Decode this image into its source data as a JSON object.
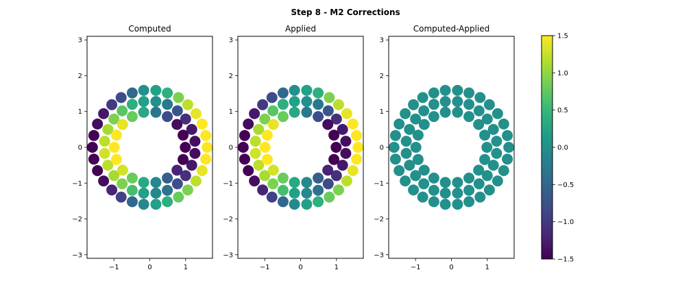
{
  "figure": {
    "suptitle": "Step 8 - M2 Corrections"
  },
  "chart_data": [
    {
      "type": "scatter",
      "title": "Computed",
      "xlim": [
        -1.75,
        1.75
      ],
      "ylim": [
        -3.1,
        3.1
      ],
      "xticks": [
        -1,
        0,
        1
      ],
      "yticks": [
        -3,
        -2,
        -1,
        0,
        1,
        2,
        3
      ],
      "colormap": "viridis",
      "clim": [
        -1.5,
        1.5
      ],
      "points": [
        {
          "x": -0.17,
          "y": 1.59,
          "v": 0.0
        },
        {
          "x": 0.17,
          "y": 1.59,
          "v": 0.2
        },
        {
          "x": 0.49,
          "y": 1.52,
          "v": 0.4
        },
        {
          "x": 0.8,
          "y": 1.39,
          "v": 0.9
        },
        {
          "x": 1.06,
          "y": 1.19,
          "v": 1.2
        },
        {
          "x": 1.29,
          "y": 0.94,
          "v": 1.4
        },
        {
          "x": 1.46,
          "y": 0.65,
          "v": 1.5
        },
        {
          "x": 1.56,
          "y": 0.33,
          "v": 1.5
        },
        {
          "x": 1.6,
          "y": 0.0,
          "v": 1.6
        },
        {
          "x": 1.56,
          "y": -0.33,
          "v": 1.5
        },
        {
          "x": 1.46,
          "y": -0.65,
          "v": 1.4
        },
        {
          "x": 1.29,
          "y": -0.94,
          "v": 1.2
        },
        {
          "x": 1.06,
          "y": -1.19,
          "v": 0.9
        },
        {
          "x": 0.8,
          "y": -1.39,
          "v": 0.8
        },
        {
          "x": 0.49,
          "y": -1.52,
          "v": 0.4
        },
        {
          "x": 0.17,
          "y": -1.59,
          "v": 0.2
        },
        {
          "x": -0.17,
          "y": -1.59,
          "v": -0.1
        },
        {
          "x": -0.49,
          "y": -1.52,
          "v": -0.5
        },
        {
          "x": -0.8,
          "y": -1.39,
          "v": -0.9
        },
        {
          "x": -1.06,
          "y": -1.19,
          "v": -1.2
        },
        {
          "x": -1.29,
          "y": -0.94,
          "v": -1.4
        },
        {
          "x": -1.46,
          "y": -0.65,
          "v": -1.5
        },
        {
          "x": -1.56,
          "y": -0.33,
          "v": -1.5
        },
        {
          "x": -1.6,
          "y": 0.0,
          "v": -1.6
        },
        {
          "x": -1.56,
          "y": 0.33,
          "v": -1.5
        },
        {
          "x": -1.46,
          "y": 0.65,
          "v": -1.4
        },
        {
          "x": -1.29,
          "y": 0.94,
          "v": -1.3
        },
        {
          "x": -1.06,
          "y": 1.19,
          "v": -1.0
        },
        {
          "x": -0.8,
          "y": 1.39,
          "v": -0.8
        },
        {
          "x": -0.49,
          "y": 1.52,
          "v": -0.5
        },
        {
          "x": -0.17,
          "y": 1.28,
          "v": 0.2
        },
        {
          "x": 0.17,
          "y": 1.28,
          "v": 0.0
        },
        {
          "x": 0.49,
          "y": 1.2,
          "v": -0.3
        },
        {
          "x": 0.77,
          "y": 1.02,
          "v": -0.7
        },
        {
          "x": 1.0,
          "y": 0.79,
          "v": -1.1
        },
        {
          "x": 1.17,
          "y": 0.5,
          "v": -1.3
        },
        {
          "x": 1.26,
          "y": 0.17,
          "v": -1.4
        },
        {
          "x": 1.26,
          "y": -0.17,
          "v": -1.4
        },
        {
          "x": 1.17,
          "y": -0.5,
          "v": -1.3
        },
        {
          "x": 1.0,
          "y": -0.79,
          "v": -1.1
        },
        {
          "x": 0.77,
          "y": -1.02,
          "v": -0.8
        },
        {
          "x": 0.49,
          "y": -1.2,
          "v": -0.4
        },
        {
          "x": 0.17,
          "y": -1.28,
          "v": -0.1
        },
        {
          "x": -0.17,
          "y": -1.28,
          "v": 0.2
        },
        {
          "x": -0.49,
          "y": -1.2,
          "v": 0.6
        },
        {
          "x": -0.77,
          "y": -1.02,
          "v": 0.9
        },
        {
          "x": -1.0,
          "y": -0.79,
          "v": 1.1
        },
        {
          "x": -1.17,
          "y": -0.5,
          "v": 1.2
        },
        {
          "x": -1.26,
          "y": -0.17,
          "v": 1.3
        },
        {
          "x": -1.26,
          "y": 0.17,
          "v": 1.2
        },
        {
          "x": -1.17,
          "y": 0.5,
          "v": 1.1
        },
        {
          "x": -1.0,
          "y": 0.79,
          "v": 0.9
        },
        {
          "x": -0.77,
          "y": 1.02,
          "v": 0.7
        },
        {
          "x": -0.49,
          "y": 1.2,
          "v": 0.4
        },
        {
          "x": -0.17,
          "y": 0.98,
          "v": 0.3
        },
        {
          "x": 0.17,
          "y": 0.98,
          "v": -0.3
        },
        {
          "x": 0.49,
          "y": 0.86,
          "v": -0.8
        },
        {
          "x": 0.76,
          "y": 0.64,
          "v": -1.4
        },
        {
          "x": 0.93,
          "y": 0.34,
          "v": -1.5
        },
        {
          "x": 0.99,
          "y": 0.0,
          "v": -1.6
        },
        {
          "x": 0.93,
          "y": -0.34,
          "v": -1.5
        },
        {
          "x": 0.76,
          "y": -0.64,
          "v": -1.2
        },
        {
          "x": 0.49,
          "y": -0.86,
          "v": -0.6
        },
        {
          "x": 0.17,
          "y": -0.98,
          "v": -0.1
        },
        {
          "x": -0.17,
          "y": -0.98,
          "v": 0.3
        },
        {
          "x": -0.49,
          "y": -0.86,
          "v": 0.8
        },
        {
          "x": -0.76,
          "y": -0.64,
          "v": 1.3
        },
        {
          "x": -0.93,
          "y": -0.34,
          "v": 1.5
        },
        {
          "x": -0.99,
          "y": 0.0,
          "v": 1.6
        },
        {
          "x": -0.93,
          "y": 0.34,
          "v": 1.5
        },
        {
          "x": -0.76,
          "y": 0.64,
          "v": 1.4
        },
        {
          "x": -0.49,
          "y": 0.86,
          "v": 0.8
        }
      ]
    },
    {
      "type": "scatter",
      "title": "Applied",
      "xlim": [
        -1.75,
        1.75
      ],
      "ylim": [
        -3.1,
        3.1
      ],
      "xticks": [
        -1,
        0,
        1
      ],
      "yticks": [
        -3,
        -2,
        -1,
        0,
        1,
        2,
        3
      ],
      "colormap": "viridis",
      "clim": [
        -1.5,
        1.5
      ],
      "same_values_as": "Computed"
    },
    {
      "type": "scatter",
      "title": "Computed-Applied",
      "xlim": [
        -1.75,
        1.75
      ],
      "ylim": [
        -3.1,
        3.1
      ],
      "xticks": [
        -1,
        0,
        1
      ],
      "yticks": [
        -3,
        -2,
        -1,
        0,
        1,
        2,
        3
      ],
      "colormap": "viridis",
      "clim": [
        -1.5,
        1.5
      ],
      "constant_value": 0.0
    }
  ],
  "colorbar": {
    "min": -1.5,
    "max": 1.5,
    "ticks": [
      {
        "value": 1.5,
        "label": "1.5"
      },
      {
        "value": 1.0,
        "label": "1.0"
      },
      {
        "value": 0.5,
        "label": "0.5"
      },
      {
        "value": 0.0,
        "label": "0.0"
      },
      {
        "value": -0.5,
        "label": "−0.5"
      },
      {
        "value": -1.0,
        "label": "−1.0"
      },
      {
        "value": -1.5,
        "label": "−1.5"
      }
    ]
  },
  "colors": {
    "viridis": [
      "#440154",
      "#482878",
      "#3e4989",
      "#31688e",
      "#26828e",
      "#1f9e89",
      "#35b779",
      "#6ece58",
      "#b5de2b",
      "#fde725"
    ]
  }
}
